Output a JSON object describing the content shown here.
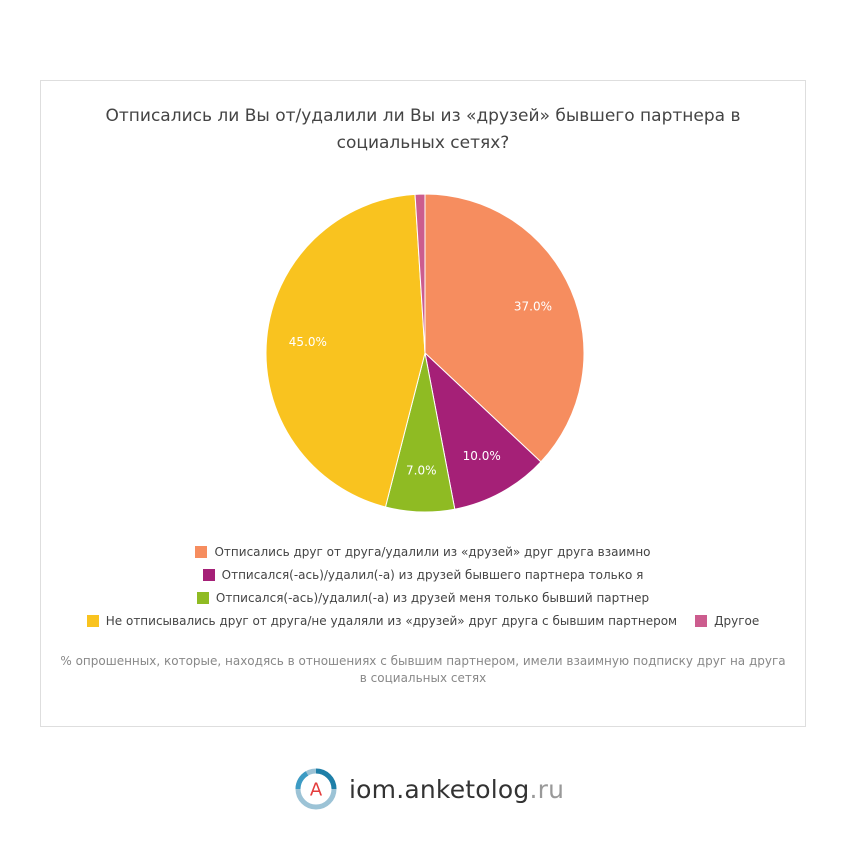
{
  "chart_data": {
    "type": "pie",
    "title": "Отписались ли Вы от/удалили ли Вы из «друзей» бывшего партнера в социальных сетях?",
    "slices": [
      {
        "label": "Отписались друг от друга/удалили из «друзей» друг друга взаимно",
        "value": 37.0,
        "display": "37.0%",
        "color": "#f68d5f"
      },
      {
        "label": "Отписался(-ась)/удалил(-а) из друзей бывшего партнера только я",
        "value": 10.0,
        "display": "10.0%",
        "color": "#a52077"
      },
      {
        "label": "Отписался(-ась)/удалил(-а) из друзей меня только бывший партнер",
        "value": 7.0,
        "display": "7.0%",
        "color": "#8fbb23"
      },
      {
        "label": "Не отписывались друг от друга/не удаляли из «друзей» друг друга с бывшим партнером",
        "value": 45.0,
        "display": "45.0%",
        "color": "#f9c31f"
      },
      {
        "label": "Другое",
        "value": 1.0,
        "display": "",
        "color": "#cc5c8e"
      }
    ],
    "legend_position": "bottom",
    "footnote": "% опрошенных, которые, находясь в отношениях с бывшим партнером, имели взаимную подписку друг на друга в социальных сетях"
  },
  "brand": {
    "logo_letter": "A",
    "name": "iom.anketolog",
    "tld": ".ru"
  }
}
